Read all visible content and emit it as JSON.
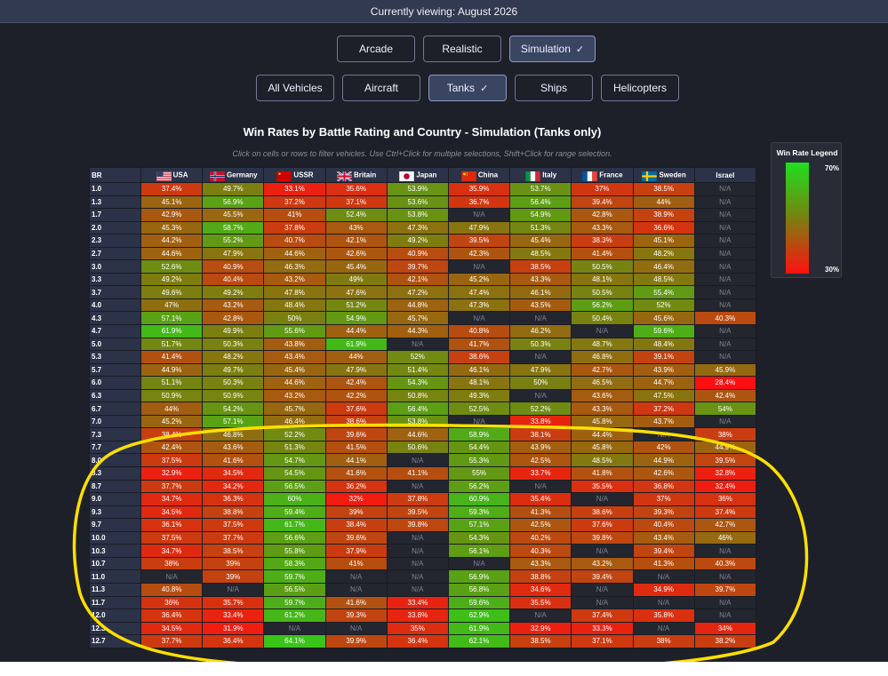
{
  "header": {
    "viewing": "Currently viewing: August 2026"
  },
  "modes": [
    {
      "label": "Arcade",
      "selected": false
    },
    {
      "label": "Realistic",
      "selected": false
    },
    {
      "label": "Simulation",
      "selected": true
    }
  ],
  "types": [
    {
      "label": "All Vehicles",
      "selected": false
    },
    {
      "label": "Aircraft",
      "selected": false
    },
    {
      "label": "Tanks",
      "selected": true
    },
    {
      "label": "Ships",
      "selected": false
    },
    {
      "label": "Helicopters",
      "selected": false
    }
  ],
  "check_glyph": "✓",
  "title": "Win Rates by Battle Rating and Country - Simulation (Tanks only)",
  "subtitle": "Click on cells or rows to filter vehicles. Use Ctrl+Click for multiple selections, Shift+Click for range selection.",
  "legend": {
    "title": "Win Rate Legend",
    "high": "70%",
    "low": "30%",
    "high_color": "#1ee01e",
    "low_color": "#ff1010"
  },
  "table": {
    "br_header": "BR",
    "countries": [
      {
        "name": "USA",
        "flag": "usa"
      },
      {
        "name": "Germany",
        "flag": "germany"
      },
      {
        "name": "USSR",
        "flag": "ussr"
      },
      {
        "name": "Britain",
        "flag": "britain"
      },
      {
        "name": "Japan",
        "flag": "japan"
      },
      {
        "name": "China",
        "flag": "china"
      },
      {
        "name": "Italy",
        "flag": "italy"
      },
      {
        "name": "France",
        "flag": "france"
      },
      {
        "name": "Sweden",
        "flag": "sweden"
      },
      {
        "name": "Israel",
        "flag": ""
      }
    ],
    "rows": [
      {
        "br": "1.0",
        "cells": [
          "37.4%",
          "49.7%",
          "33.1%",
          "35.6%",
          "53.9%",
          "35.9%",
          "53.7%",
          "37%",
          "38.5%",
          "N/A"
        ]
      },
      {
        "br": "1.3",
        "cells": [
          "45.1%",
          "56.9%",
          "37.2%",
          "37.1%",
          "53.6%",
          "36.7%",
          "56.4%",
          "39.4%",
          "44%",
          "N/A"
        ]
      },
      {
        "br": "1.7",
        "cells": [
          "42.9%",
          "45.5%",
          "41%",
          "52.4%",
          "53.8%",
          "N/A",
          "54.9%",
          "42.8%",
          "38.9%",
          "N/A"
        ]
      },
      {
        "br": "2.0",
        "cells": [
          "45.3%",
          "58.7%",
          "37.8%",
          "43%",
          "47.3%",
          "47.9%",
          "51.3%",
          "43.3%",
          "36.6%",
          "N/A"
        ]
      },
      {
        "br": "2.3",
        "cells": [
          "44.2%",
          "55.2%",
          "40.7%",
          "42.1%",
          "49.2%",
          "39.5%",
          "45.4%",
          "38.3%",
          "45.1%",
          "N/A"
        ]
      },
      {
        "br": "2.7",
        "cells": [
          "44.6%",
          "47.9%",
          "44.6%",
          "42.6%",
          "40.9%",
          "42.3%",
          "48.5%",
          "41.4%",
          "48.2%",
          "N/A"
        ]
      },
      {
        "br": "3.0",
        "cells": [
          "52.6%",
          "40.9%",
          "46.3%",
          "45.4%",
          "39.7%",
          "N/A",
          "38.5%",
          "50.5%",
          "46.4%",
          "N/A"
        ]
      },
      {
        "br": "3.3",
        "cells": [
          "49.2%",
          "40.4%",
          "43.2%",
          "49%",
          "42.1%",
          "45.2%",
          "43.3%",
          "48.1%",
          "48.5%",
          "N/A"
        ]
      },
      {
        "br": "3.7",
        "cells": [
          "49.6%",
          "49.2%",
          "47.8%",
          "47.6%",
          "47.2%",
          "47.4%",
          "46.1%",
          "50.5%",
          "55.4%",
          "N/A"
        ]
      },
      {
        "br": "4.0",
        "cells": [
          "47%",
          "43.2%",
          "48.4%",
          "51.2%",
          "44.8%",
          "47.3%",
          "43.5%",
          "56.2%",
          "52%",
          "N/A"
        ]
      },
      {
        "br": "4.3",
        "cells": [
          "57.1%",
          "42.8%",
          "50%",
          "54.9%",
          "45.7%",
          "N/A",
          "N/A",
          "50.4%",
          "45.6%",
          "40.3%"
        ]
      },
      {
        "br": "4.7",
        "cells": [
          "61.9%",
          "49.9%",
          "55.6%",
          "44.4%",
          "44.3%",
          "40.8%",
          "46.2%",
          "N/A",
          "59.6%",
          "N/A"
        ]
      },
      {
        "br": "5.0",
        "cells": [
          "51.7%",
          "50.3%",
          "43.8%",
          "61.9%",
          "N/A",
          "41.7%",
          "50.3%",
          "48.7%",
          "48.4%",
          "N/A"
        ]
      },
      {
        "br": "5.3",
        "cells": [
          "41.4%",
          "48.2%",
          "43.4%",
          "44%",
          "52%",
          "38.6%",
          "N/A",
          "46.8%",
          "39.1%",
          "N/A"
        ]
      },
      {
        "br": "5.7",
        "cells": [
          "44.9%",
          "49.7%",
          "45.4%",
          "47.9%",
          "51.4%",
          "46.1%",
          "47.9%",
          "42.7%",
          "43.9%",
          "45.9%"
        ]
      },
      {
        "br": "6.0",
        "cells": [
          "51.1%",
          "50.3%",
          "44.6%",
          "42.4%",
          "54.3%",
          "48.1%",
          "50%",
          "46.5%",
          "44.7%",
          "28.4%"
        ]
      },
      {
        "br": "6.3",
        "cells": [
          "50.9%",
          "50.9%",
          "43.2%",
          "42.2%",
          "50.8%",
          "49.3%",
          "N/A",
          "43.6%",
          "47.5%",
          "42.4%"
        ]
      },
      {
        "br": "6.7",
        "cells": [
          "44%",
          "54.2%",
          "45.7%",
          "37.6%",
          "56.4%",
          "52.5%",
          "52.2%",
          "43.3%",
          "37.2%",
          "54%"
        ]
      },
      {
        "br": "7.0",
        "cells": [
          "45.2%",
          "57.1%",
          "46.4%",
          "38.6%",
          "53.8%",
          "N/A",
          "33.8%",
          "45.8%",
          "43.7%",
          "N/A"
        ]
      },
      {
        "br": "7.3",
        "cells": [
          "38.4%",
          "46.8%",
          "52.2%",
          "39.6%",
          "44.6%",
          "58.9%",
          "38.1%",
          "44.4%",
          "N/A",
          "38%"
        ]
      },
      {
        "br": "7.7",
        "cells": [
          "42.4%",
          "43.6%",
          "51.3%",
          "41.5%",
          "50.6%",
          "54.4%",
          "43.9%",
          "45.8%",
          "42%",
          "44.9%"
        ]
      },
      {
        "br": "8.0",
        "cells": [
          "37.5%",
          "41.6%",
          "54.7%",
          "44.1%",
          "N/A",
          "55.3%",
          "42.5%",
          "48.5%",
          "44.9%",
          "39.5%"
        ]
      },
      {
        "br": "8.3",
        "cells": [
          "32.9%",
          "34.5%",
          "54.5%",
          "41.6%",
          "41.1%",
          "55%",
          "33.7%",
          "41.8%",
          "42.6%",
          "32.8%"
        ]
      },
      {
        "br": "8.7",
        "cells": [
          "37.7%",
          "34.2%",
          "56.5%",
          "36.2%",
          "N/A",
          "56.2%",
          "N/A",
          "35.5%",
          "36.8%",
          "32.4%"
        ]
      },
      {
        "br": "9.0",
        "cells": [
          "34.7%",
          "36.3%",
          "60%",
          "32%",
          "37.8%",
          "60.9%",
          "35.4%",
          "N/A",
          "37%",
          "36%"
        ]
      },
      {
        "br": "9.3",
        "cells": [
          "34.5%",
          "38.8%",
          "59.4%",
          "39%",
          "39.5%",
          "59.3%",
          "41.3%",
          "38.6%",
          "39.3%",
          "37.4%"
        ]
      },
      {
        "br": "9.7",
        "cells": [
          "36.1%",
          "37.5%",
          "61.7%",
          "38.4%",
          "39.8%",
          "57.1%",
          "42.5%",
          "37.6%",
          "40.4%",
          "42.7%"
        ]
      },
      {
        "br": "10.0",
        "cells": [
          "37.5%",
          "37.7%",
          "56.6%",
          "39.6%",
          "N/A",
          "54.3%",
          "40.2%",
          "39.8%",
          "43.4%",
          "46%"
        ]
      },
      {
        "br": "10.3",
        "cells": [
          "34.7%",
          "38.5%",
          "55.8%",
          "37.9%",
          "N/A",
          "56.1%",
          "40.3%",
          "N/A",
          "39.4%",
          "N/A"
        ]
      },
      {
        "br": "10.7",
        "cells": [
          "38%",
          "39%",
          "58.3%",
          "41%",
          "N/A",
          "N/A",
          "43.3%",
          "43.2%",
          "41.3%",
          "40.3%"
        ]
      },
      {
        "br": "11.0",
        "cells": [
          "N/A",
          "39%",
          "59.7%",
          "N/A",
          "N/A",
          "56.9%",
          "38.8%",
          "39.4%",
          "N/A",
          "N/A"
        ]
      },
      {
        "br": "11.3",
        "cells": [
          "40.8%",
          "N/A",
          "56.5%",
          "N/A",
          "N/A",
          "56.8%",
          "34.6%",
          "N/A",
          "34.9%",
          "39.7%"
        ]
      },
      {
        "br": "11.7",
        "cells": [
          "36%",
          "35.7%",
          "59.7%",
          "41.6%",
          "33.4%",
          "59.6%",
          "35.5%",
          "N/A",
          "N/A",
          "N/A"
        ]
      },
      {
        "br": "12.0",
        "cells": [
          "36.4%",
          "33.4%",
          "61.2%",
          "39.3%",
          "33.8%",
          "62.9%",
          "N/A",
          "37.4%",
          "35.8%",
          "N/A"
        ]
      },
      {
        "br": "12.3",
        "cells": [
          "34.5%",
          "31.9%",
          "N/A",
          "N/A",
          "35%",
          "61.9%",
          "32.9%",
          "33.3%",
          "N/A",
          "34%"
        ]
      },
      {
        "br": "12.7",
        "cells": [
          "37.7%",
          "36.4%",
          "64.1%",
          "39.9%",
          "36.4%",
          "62.1%",
          "38.5%",
          "37.1%",
          "38%",
          "38.2%"
        ]
      }
    ]
  },
  "annotation": {
    "color": "#ffe000"
  }
}
